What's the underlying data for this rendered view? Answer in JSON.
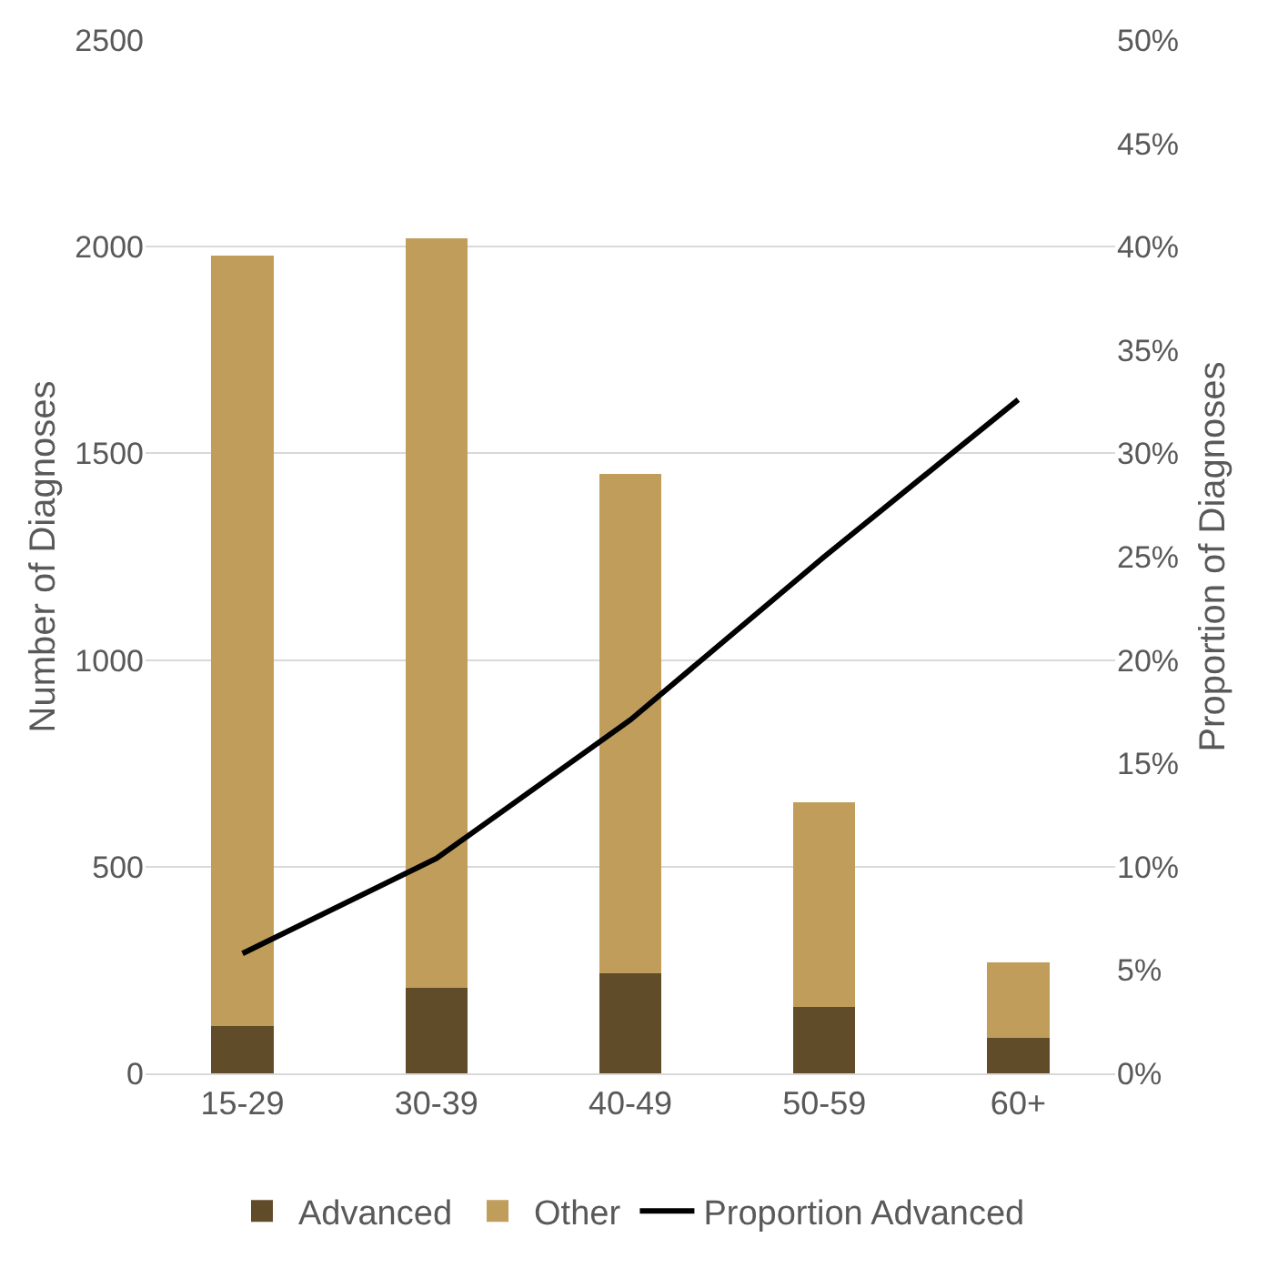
{
  "chart_data": {
    "type": "bar",
    "stacked": true,
    "categories": [
      "15-29",
      "30-39",
      "40-49",
      "50-59",
      "60+"
    ],
    "ylabel": "Number of Diagnoses",
    "y2label": "Proportion of Diagnoses",
    "series": [
      {
        "name": "Advanced",
        "color": "#614c2a",
        "values": [
          115,
          207,
          242,
          160,
          86
        ]
      },
      {
        "name": "Other",
        "color": "#c19d5c",
        "values": [
          1863,
          1814,
          1209,
          496,
          182
        ]
      },
      {
        "name": "Proportion Advanced",
        "type": "line",
        "axis": "y2",
        "color": "#000000",
        "values": [
          5.8,
          10.4,
          17.1,
          25.0,
          32.6
        ]
      }
    ],
    "ylim": [
      0,
      2500
    ],
    "yticks": [
      0,
      500,
      1000,
      1500,
      2000,
      2500
    ],
    "y2lim": [
      0,
      50
    ],
    "y2ticks": [
      {
        "value": 0,
        "label": "0%"
      },
      {
        "value": 5,
        "label": "5%"
      },
      {
        "value": 10,
        "label": "10%"
      },
      {
        "value": 15,
        "label": "15%"
      },
      {
        "value": 20,
        "label": "20%"
      },
      {
        "value": 25,
        "label": "25%"
      },
      {
        "value": 30,
        "label": "30%"
      },
      {
        "value": 35,
        "label": "35%"
      },
      {
        "value": 40,
        "label": "40%"
      },
      {
        "value": 45,
        "label": "45%"
      },
      {
        "value": 50,
        "label": "50%"
      }
    ],
    "grid": "y",
    "legend": "bottom",
    "marker": "none",
    "line_style": "solid"
  }
}
